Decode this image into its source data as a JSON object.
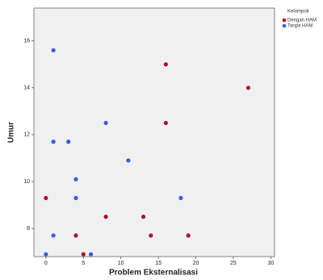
{
  "chart_data": {
    "type": "scatter",
    "x_label": "Problem Eksternalisasi",
    "y_label": "Umur",
    "legend_title": "Kelompok",
    "xlim": [
      -1.6,
      30.5
    ],
    "ylim": [
      6.8,
      17.4
    ],
    "xticks": [
      0,
      5,
      10,
      15,
      20,
      25,
      30
    ],
    "yticks": [
      8,
      10,
      12,
      14,
      16
    ],
    "series": [
      {
        "name": "Dengan HAM",
        "color": "#b0102a",
        "x": [
          16,
          27,
          16,
          0,
          8,
          13,
          4,
          14,
          19,
          5
        ],
        "values": [
          15,
          14,
          12.5,
          9.3,
          8.5,
          8.5,
          7.7,
          7.7,
          7.7,
          6.9
        ]
      },
      {
        "name": "Tanpa HAM",
        "color": "#3b5bdb",
        "x": [
          1,
          8,
          1,
          3,
          11,
          4,
          4,
          18,
          1,
          0,
          6
        ],
        "values": [
          15.6,
          12.5,
          11.7,
          11.7,
          10.9,
          10.1,
          9.3,
          9.3,
          7.7,
          6.9,
          6.9
        ]
      }
    ]
  }
}
